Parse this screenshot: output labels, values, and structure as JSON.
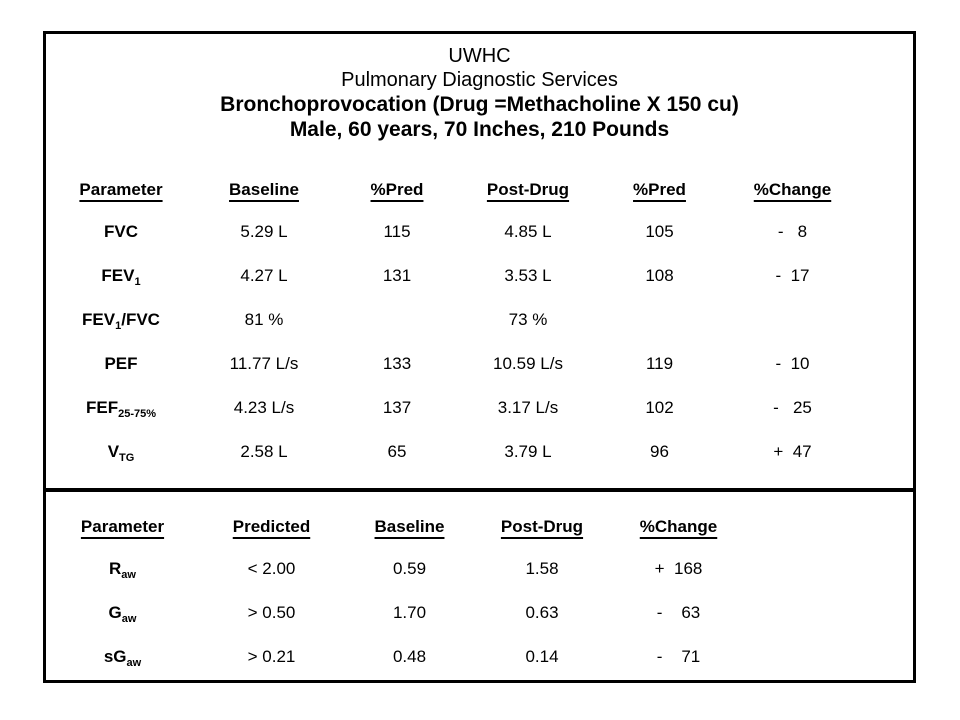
{
  "page": {
    "background_color": "#ffffff",
    "border_color": "#000000"
  },
  "header": {
    "line1": "UWHC",
    "line2": "Pulmonary Diagnostic Services",
    "line3": "Bronchoprovocation (Drug =Methacholine X 150 cu)",
    "line4": "Male, 60 years, 70 Inches, 210 Pounds"
  },
  "table1": {
    "columns": [
      "Parameter",
      "Baseline",
      "%Pred",
      "Post-Drug",
      "%Pred",
      "%Change"
    ],
    "rows": [
      {
        "param": [
          {
            "t": "FVC"
          }
        ],
        "cells": [
          "5.29 L",
          "115",
          "4.85 L",
          "105",
          "-   8"
        ]
      },
      {
        "param": [
          {
            "t": "FEV"
          },
          {
            "t": "1",
            "sub": true
          }
        ],
        "cells": [
          "4.27 L",
          "131",
          "3.53 L",
          "108",
          "-  17"
        ]
      },
      {
        "param": [
          {
            "t": "FEV"
          },
          {
            "t": "1",
            "sub": true
          },
          {
            "t": "/FVC"
          }
        ],
        "cells": [
          "81 %",
          "",
          "73 %",
          "",
          ""
        ]
      },
      {
        "param": [
          {
            "t": "PEF"
          }
        ],
        "cells": [
          "11.77 L/s",
          "133",
          "10.59 L/s",
          "119",
          "-  10"
        ]
      },
      {
        "param": [
          {
            "t": "FEF"
          },
          {
            "t": "25-75%",
            "sub": true
          }
        ],
        "cells": [
          "4.23 L/s",
          "137",
          "3.17 L/s",
          "102",
          "-   25"
        ]
      },
      {
        "param": [
          {
            "t": "V"
          },
          {
            "t": "TG",
            "sub": true
          }
        ],
        "cells": [
          "2.58 L",
          "65",
          "3.79 L",
          "96",
          "+  47"
        ]
      }
    ]
  },
  "table2": {
    "columns": [
      "Parameter",
      "Predicted",
      "Baseline",
      "Post-Drug",
      "%Change"
    ],
    "rows": [
      {
        "param": [
          {
            "t": "R"
          },
          {
            "t": "aw",
            "sub": true
          }
        ],
        "cells": [
          "< 2.00",
          "0.59",
          "1.58",
          "+  168"
        ]
      },
      {
        "param": [
          {
            "t": "G"
          },
          {
            "t": "aw",
            "sub": true
          }
        ],
        "cells": [
          "> 0.50",
          "1.70",
          "0.63",
          "-    63"
        ]
      },
      {
        "param": [
          {
            "t": "sG"
          },
          {
            "t": "aw",
            "sub": true
          }
        ],
        "cells": [
          "> 0.21",
          "0.48",
          "0.14",
          "-    71"
        ]
      }
    ]
  }
}
